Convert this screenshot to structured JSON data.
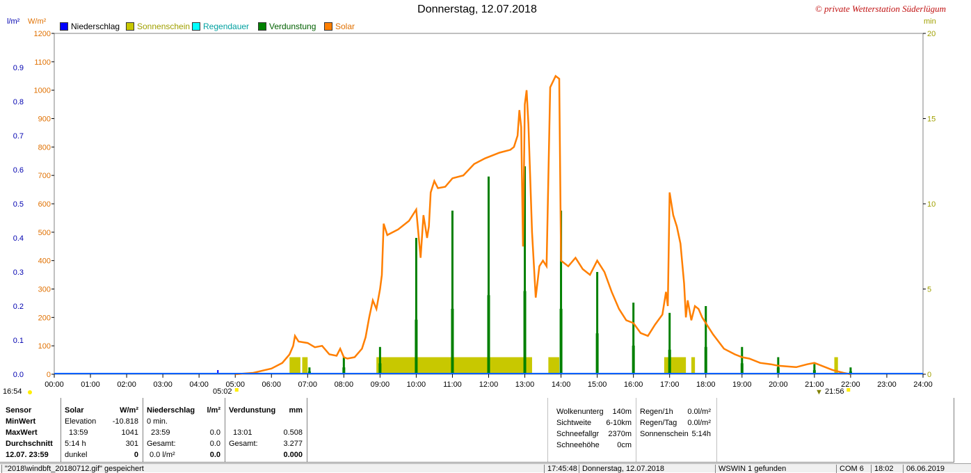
{
  "title": "Donnerstag, 12.07.2018",
  "copyright": "© private Wetterstation Süderlügum",
  "units": {
    "left1": "l/m²",
    "left2": "W/m²",
    "right": "min"
  },
  "legend": [
    {
      "label": "Niederschlag",
      "color": "#0000ff"
    },
    {
      "label": "Sonnenschein",
      "color": "#c8c800"
    },
    {
      "label": "Regendauer",
      "color": "#00ffff"
    },
    {
      "label": "Verdunstung",
      "color": "#008000"
    },
    {
      "label": "Solar",
      "color": "#ff7f00"
    }
  ],
  "markers": {
    "sunrise": "05:02",
    "sunset": "21:56",
    "left_time": "16:54"
  },
  "chart_data": {
    "type": "line",
    "title": "Donnerstag, 12.07.2018",
    "x_ticks": [
      "00:00",
      "01:00",
      "02:00",
      "03:00",
      "04:00",
      "05:00",
      "06:00",
      "07:00",
      "08:00",
      "09:00",
      "10:00",
      "11:00",
      "12:00",
      "13:00",
      "14:00",
      "15:00",
      "16:00",
      "17:00",
      "18:00",
      "19:00",
      "20:00",
      "21:00",
      "22:00",
      "23:00",
      "24:00"
    ],
    "y_left_precip_ticks": [
      "0.0",
      "0.1",
      "0.2",
      "0.3",
      "0.4",
      "0.5",
      "0.6",
      "0.7",
      "0.8",
      "0.9"
    ],
    "y_left_solar_ticks": [
      "0",
      "100",
      "200",
      "300",
      "400",
      "500",
      "600",
      "700",
      "800",
      "900",
      "1000",
      "1100",
      "1200"
    ],
    "y_right_ticks": [
      "0",
      "5",
      "10",
      "15",
      "20"
    ],
    "xlim_hours": [
      0,
      24
    ],
    "ylim_solar": [
      0,
      1200
    ],
    "ylim_precip": [
      0,
      1.0
    ],
    "ylim_minutes": [
      0,
      20
    ],
    "grid": true,
    "series": [
      {
        "name": "Solar",
        "color": "#ff7f00",
        "unit": "W/m²",
        "points": [
          [
            5.0,
            0
          ],
          [
            5.5,
            5
          ],
          [
            6.0,
            20
          ],
          [
            6.3,
            40
          ],
          [
            6.5,
            70
          ],
          [
            6.6,
            100
          ],
          [
            6.65,
            135
          ],
          [
            6.75,
            115
          ],
          [
            7.0,
            110
          ],
          [
            7.2,
            95
          ],
          [
            7.4,
            100
          ],
          [
            7.6,
            70
          ],
          [
            7.8,
            65
          ],
          [
            7.9,
            90
          ],
          [
            8.0,
            60
          ],
          [
            8.1,
            55
          ],
          [
            8.3,
            60
          ],
          [
            8.5,
            90
          ],
          [
            8.6,
            130
          ],
          [
            8.7,
            200
          ],
          [
            8.8,
            260
          ],
          [
            8.9,
            230
          ],
          [
            9.0,
            300
          ],
          [
            9.05,
            350
          ],
          [
            9.1,
            530
          ],
          [
            9.2,
            490
          ],
          [
            9.5,
            510
          ],
          [
            9.8,
            540
          ],
          [
            10.0,
            580
          ],
          [
            10.05,
            510
          ],
          [
            10.12,
            410
          ],
          [
            10.2,
            560
          ],
          [
            10.3,
            480
          ],
          [
            10.35,
            520
          ],
          [
            10.4,
            640
          ],
          [
            10.5,
            680
          ],
          [
            10.6,
            655
          ],
          [
            10.8,
            660
          ],
          [
            11.0,
            690
          ],
          [
            11.3,
            700
          ],
          [
            11.6,
            740
          ],
          [
            11.9,
            760
          ],
          [
            12.3,
            780
          ],
          [
            12.6,
            790
          ],
          [
            12.7,
            800
          ],
          [
            12.8,
            840
          ],
          [
            12.85,
            930
          ],
          [
            12.9,
            870
          ],
          [
            12.95,
            450
          ],
          [
            13.0,
            950
          ],
          [
            13.05,
            1000
          ],
          [
            13.1,
            880
          ],
          [
            13.2,
            500
          ],
          [
            13.3,
            270
          ],
          [
            13.4,
            380
          ],
          [
            13.5,
            400
          ],
          [
            13.6,
            380
          ],
          [
            13.7,
            1010
          ],
          [
            13.85,
            1050
          ],
          [
            13.95,
            1040
          ],
          [
            14.0,
            400
          ],
          [
            14.2,
            380
          ],
          [
            14.4,
            410
          ],
          [
            14.6,
            370
          ],
          [
            14.8,
            350
          ],
          [
            15.0,
            400
          ],
          [
            15.2,
            360
          ],
          [
            15.4,
            290
          ],
          [
            15.6,
            230
          ],
          [
            15.8,
            190
          ],
          [
            16.0,
            180
          ],
          [
            16.2,
            145
          ],
          [
            16.4,
            135
          ],
          [
            16.6,
            175
          ],
          [
            16.8,
            210
          ],
          [
            16.9,
            290
          ],
          [
            16.95,
            240
          ],
          [
            17.0,
            640
          ],
          [
            17.1,
            560
          ],
          [
            17.2,
            520
          ],
          [
            17.3,
            460
          ],
          [
            17.4,
            320
          ],
          [
            17.45,
            200
          ],
          [
            17.5,
            260
          ],
          [
            17.6,
            190
          ],
          [
            17.7,
            240
          ],
          [
            17.8,
            230
          ],
          [
            17.9,
            200
          ],
          [
            18.2,
            140
          ],
          [
            18.5,
            90
          ],
          [
            18.8,
            70
          ],
          [
            19.0,
            60
          ],
          [
            19.2,
            55
          ],
          [
            19.5,
            40
          ],
          [
            19.8,
            35
          ],
          [
            20.0,
            30
          ],
          [
            20.5,
            25
          ],
          [
            20.8,
            35
          ],
          [
            21.0,
            40
          ],
          [
            21.2,
            30
          ],
          [
            21.5,
            15
          ],
          [
            21.8,
            5
          ],
          [
            22.0,
            0
          ]
        ]
      },
      {
        "name": "Verdunstung",
        "color": "#008000",
        "unit": "mm",
        "bars": [
          [
            7.05,
            0.02
          ],
          [
            8.0,
            0.05
          ],
          [
            9.0,
            0.08
          ],
          [
            10.0,
            0.4
          ],
          [
            11.0,
            0.48
          ],
          [
            12.0,
            0.58
          ],
          [
            13.0,
            0.61
          ],
          [
            14.0,
            0.48
          ],
          [
            15.0,
            0.3
          ],
          [
            16.0,
            0.21
          ],
          [
            17.0,
            0.18
          ],
          [
            18.0,
            0.2
          ],
          [
            19.0,
            0.08
          ],
          [
            20.0,
            0.05
          ],
          [
            21.0,
            0.03
          ],
          [
            22.0,
            0.02
          ]
        ]
      },
      {
        "name": "Sonnenschein",
        "color": "#c8c800",
        "unit": "min",
        "spans": [
          [
            6.5,
            6.8
          ],
          [
            6.85,
            7.0
          ],
          [
            8.9,
            13.2
          ],
          [
            13.65,
            13.95
          ],
          [
            16.85,
            17.45
          ],
          [
            17.6,
            17.7
          ],
          [
            21.55,
            21.65
          ]
        ]
      },
      {
        "name": "Niederschlag",
        "color": "#0000ff",
        "unit": "l/m²",
        "values": []
      }
    ]
  },
  "stats": {
    "sensor": {
      "h0": "Sensor",
      "r1": "MinWert",
      "r2": "MaxWert",
      "r3": "Durchschnitt",
      "r4": "12.07. 23:59"
    },
    "solar": {
      "h0": "Solar",
      "h1": "W/m²",
      "r1a": "Elevation",
      "r1b": "-10.818",
      "r2a": "13:59",
      "r2b": "1041",
      "r3a": "5:14 h",
      "r3b": "301",
      "r4a": "dunkel",
      "r4b": "0"
    },
    "niederschlag": {
      "h0": "Niederschlag",
      "h1": "l/m²",
      "r1a": "0 min.",
      "r1b": "",
      "r2a": "23:59",
      "r2b": "0.0",
      "r3a": "Gesamt:",
      "r3b": "0.0",
      "r4a": "0.0 l/m²",
      "r4b": "0.0"
    },
    "verdunstung": {
      "h0": "Verdunstung",
      "h1": "mm",
      "r1a": "",
      "r1b": "",
      "r2a": "13:01",
      "r2b": "0.508",
      "r3a": "Gesamt:",
      "r3b": "3.277",
      "r4a": "",
      "r4b": "0.000"
    },
    "extra1": {
      "a1": "Wolkenunterg",
      "b1": "140m",
      "a2": "Sichtweite",
      "b2": "6-10km",
      "a3": "Schneefallgr",
      "b3": "2370m",
      "a4": "Schneehöhe",
      "b4": "0cm"
    },
    "extra2": {
      "a1": "Regen/1h",
      "b1": "0.0l/m²",
      "a2": "Regen/Tag",
      "b2": "0.0l/m²",
      "a3": "Sonnenschein",
      "b3": "5:14h"
    }
  },
  "statusbar": {
    "file": "\"2018\\windbft_20180712.gif\"  gespeichert",
    "time": "17:45:48",
    "date": "Donnerstag, 12.07.2018",
    "wswin": "WSWIN 1 gefunden",
    "com": "COM 6",
    "clock": "18:02",
    "today": "06.06.2019"
  }
}
